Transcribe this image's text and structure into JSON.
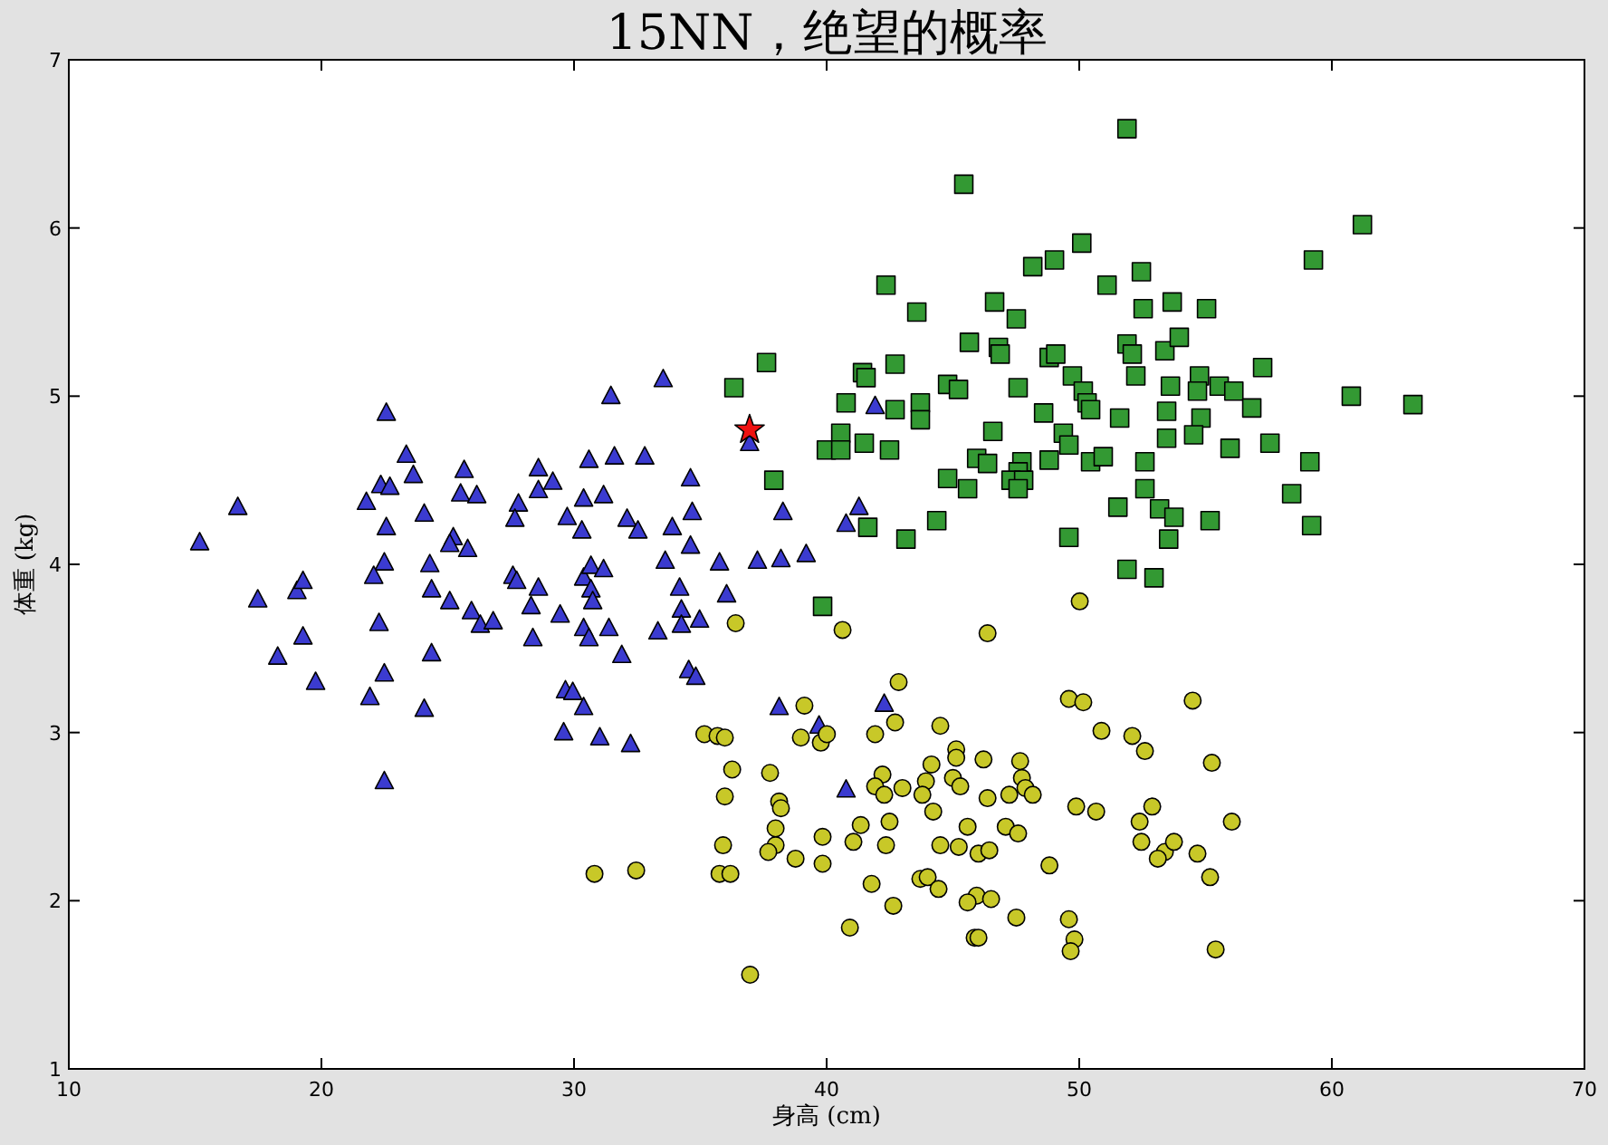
{
  "chart_data": {
    "type": "scatter",
    "title": "15NN，绝望的概率",
    "xlabel": "身高 (cm)",
    "ylabel": "体重 (kg)",
    "xlim": [
      10,
      70
    ],
    "ylim": [
      1,
      7
    ],
    "xticks": [
      10,
      20,
      30,
      40,
      50,
      60,
      70
    ],
    "yticks": [
      1,
      2,
      3,
      4,
      5,
      6,
      7
    ],
    "grid": false,
    "series": [
      {
        "color": "#3b3bd0",
        "marker": "triangle",
        "x": [
          15.18,
          16.69,
          17.48,
          18.27,
          19.03,
          19.27,
          19.27,
          19.77,
          21.78,
          22.35,
          22.71,
          22.57,
          23.36,
          23.64,
          22.57,
          24.07,
          22.49,
          22.07,
          24.29,
          24.36,
          22.28,
          22.49,
          21.92,
          24.07,
          22.49,
          24.36,
          25.08,
          25.22,
          25.08,
          25.79,
          25.65,
          25.51,
          26.15,
          25.94,
          26.29,
          26.8,
          27.8,
          27.66,
          28.59,
          28.59,
          29.16,
          27.58,
          27.73,
          28.59,
          28.3,
          29.45,
          28.37,
          29.73,
          30.31,
          30.38,
          31.17,
          30.59,
          31.6,
          32.8,
          31.46,
          33.53,
          30.38,
          30.67,
          31.17,
          30.67,
          30.74,
          30.38,
          30.59,
          31.38,
          31.89,
          32.1,
          32.53,
          33.89,
          34.61,
          34.68,
          34.61,
          33.61,
          34.18,
          34.25,
          34.25,
          34.97,
          33.32,
          34.54,
          34.82,
          29.66,
          29.95,
          30.38,
          29.59,
          31.02,
          32.24,
          41.92,
          36.95,
          38.27,
          41.28,
          40.77,
          35.76,
          37.26,
          38.19,
          39.19,
          36.04,
          38.12,
          39.7,
          40.77,
          42.28
        ],
        "values": [
          4.13,
          4.34,
          3.79,
          3.45,
          3.84,
          3.9,
          3.57,
          3.3,
          4.37,
          4.47,
          4.46,
          4.9,
          4.65,
          4.53,
          4.22,
          4.3,
          4.01,
          3.93,
          4.0,
          3.85,
          3.65,
          3.35,
          3.21,
          3.14,
          2.71,
          3.47,
          3.78,
          4.16,
          4.12,
          4.09,
          4.56,
          4.42,
          4.41,
          3.72,
          3.64,
          3.66,
          4.36,
          4.27,
          4.57,
          4.44,
          4.49,
          3.93,
          3.9,
          3.86,
          3.75,
          3.7,
          3.56,
          4.28,
          4.2,
          4.39,
          4.41,
          4.62,
          4.64,
          4.64,
          5.0,
          5.1,
          3.92,
          3.99,
          3.97,
          3.85,
          3.78,
          3.62,
          3.56,
          3.62,
          3.46,
          4.27,
          4.2,
          4.22,
          4.51,
          4.31,
          4.11,
          4.02,
          3.86,
          3.73,
          3.64,
          3.67,
          3.6,
          3.37,
          3.33,
          3.25,
          3.24,
          3.15,
          3.0,
          2.97,
          2.93,
          4.94,
          4.72,
          4.31,
          4.34,
          4.24,
          4.01,
          4.02,
          4.03,
          4.06,
          3.82,
          3.15,
          3.04,
          2.66,
          3.17
        ]
      },
      {
        "color": "#339933",
        "marker": "square",
        "x": [
          51.89,
          45.43,
          61.21,
          59.27,
          50.1,
          48.16,
          49.02,
          52.46,
          51.1,
          42.35,
          43.57,
          46.65,
          47.51,
          52.53,
          53.68,
          55.04,
          45.65,
          46.8,
          46.87,
          48.81,
          49.07,
          51.89,
          52.1,
          53.39,
          53.96,
          57.26,
          37.62,
          36.33,
          41.42,
          41.56,
          42.71,
          40.77,
          42.71,
          43.71,
          43.71,
          44.79,
          45.22,
          47.58,
          49.73,
          50.16,
          50.31,
          50.45,
          52.24,
          53.61,
          54.76,
          54.68,
          55.54,
          56.12,
          56.83,
          60.77,
          63.21,
          48.59,
          51.6,
          53.46,
          54.82,
          40.56,
          39.99,
          40.56,
          41.49,
          42.49,
          46.58,
          49.37,
          49.59,
          53.46,
          54.53,
          55.97,
          57.55,
          45.94,
          46.37,
          47.73,
          47.58,
          47.3,
          47.8,
          47.58,
          48.81,
          50.45,
          50.95,
          52.6,
          59.13,
          44.79,
          45.58,
          52.6,
          58.41,
          37.91,
          51.53,
          53.18,
          53.75,
          55.18,
          59.2,
          41.63,
          43.14,
          44.36,
          49.59,
          53.54,
          51.89,
          52.96,
          39.84
        ],
        "values": [
          6.59,
          6.26,
          6.02,
          5.81,
          5.91,
          5.77,
          5.81,
          5.74,
          5.66,
          5.66,
          5.5,
          5.56,
          5.46,
          5.52,
          5.56,
          5.52,
          5.32,
          5.29,
          5.25,
          5.23,
          5.25,
          5.31,
          5.25,
          5.27,
          5.35,
          5.17,
          5.2,
          5.05,
          5.14,
          5.11,
          5.19,
          4.96,
          4.92,
          4.96,
          4.86,
          5.07,
          5.04,
          5.05,
          5.12,
          5.03,
          4.96,
          4.92,
          5.12,
          5.06,
          5.12,
          5.03,
          5.06,
          5.03,
          4.93,
          5.0,
          4.95,
          4.9,
          4.87,
          4.91,
          4.87,
          4.78,
          4.68,
          4.68,
          4.72,
          4.68,
          4.79,
          4.78,
          4.71,
          4.75,
          4.77,
          4.69,
          4.72,
          4.63,
          4.6,
          4.61,
          4.55,
          4.5,
          4.5,
          4.45,
          4.62,
          4.61,
          4.64,
          4.61,
          4.61,
          4.51,
          4.45,
          4.45,
          4.42,
          4.5,
          4.34,
          4.33,
          4.28,
          4.26,
          4.23,
          4.22,
          4.15,
          4.26,
          4.16,
          4.15,
          3.97,
          3.92,
          3.75
        ]
      },
      {
        "color": "#c8c828",
        "marker": "circle",
        "x": [
          36.4,
          40.63,
          39.12,
          35.16,
          35.68,
          35.97,
          38.98,
          39.77,
          40.01,
          41.92,
          36.26,
          37.76,
          42.21,
          41.92,
          42.28,
          35.97,
          38.12,
          38.19,
          41.35,
          37.98,
          37.98,
          37.69,
          39.84,
          41.06,
          35.9,
          38.77,
          39.84,
          41.78,
          30.81,
          32.46,
          35.76,
          36.19,
          40.92,
          36.97,
          50.02,
          46.37,
          42.85,
          49.59,
          50.16,
          54.49,
          42.71,
          44.5,
          50.88,
          52.1,
          52.6,
          45.13,
          45.13,
          46.21,
          47.66,
          55.25,
          44.15,
          43.93,
          45.0,
          45.29,
          47.73,
          47.87,
          48.16,
          43.0,
          43.79,
          46.37,
          47.23,
          44.22,
          49.88,
          50.67,
          52.89,
          42.49,
          45.58,
          47.09,
          52.39,
          56.04,
          42.35,
          44.5,
          45.23,
          46.01,
          46.44,
          47.58,
          52.46,
          53.39,
          53.75,
          53.11,
          54.68,
          48.82,
          55.18,
          43.71,
          44.0,
          44.43,
          45.94,
          45.58,
          46.51,
          42.64,
          47.51,
          49.59,
          49.81,
          49.66,
          45.86,
          46.01,
          55.4
        ],
        "values": [
          3.65,
          3.61,
          3.16,
          2.99,
          2.98,
          2.97,
          2.97,
          2.94,
          2.99,
          2.99,
          2.78,
          2.76,
          2.75,
          2.68,
          2.63,
          2.62,
          2.59,
          2.55,
          2.45,
          2.43,
          2.33,
          2.29,
          2.38,
          2.35,
          2.33,
          2.25,
          2.22,
          2.1,
          2.16,
          2.18,
          2.16,
          2.16,
          1.84,
          1.56,
          3.78,
          3.59,
          3.3,
          3.2,
          3.18,
          3.19,
          3.06,
          3.04,
          3.01,
          2.98,
          2.89,
          2.9,
          2.85,
          2.84,
          2.83,
          2.82,
          2.81,
          2.71,
          2.73,
          2.68,
          2.73,
          2.67,
          2.63,
          2.67,
          2.63,
          2.61,
          2.63,
          2.53,
          2.56,
          2.53,
          2.56,
          2.47,
          2.44,
          2.44,
          2.47,
          2.47,
          2.33,
          2.33,
          2.32,
          2.28,
          2.3,
          2.4,
          2.35,
          2.29,
          2.35,
          2.25,
          2.28,
          2.21,
          2.14,
          2.13,
          2.14,
          2.07,
          2.03,
          1.99,
          2.01,
          1.97,
          1.9,
          1.89,
          1.77,
          1.7,
          1.78,
          1.78,
          1.71
        ]
      },
      {
        "color": "#ee1111",
        "marker": "star",
        "x": [
          36.95
        ],
        "values": [
          4.8
        ]
      }
    ]
  }
}
